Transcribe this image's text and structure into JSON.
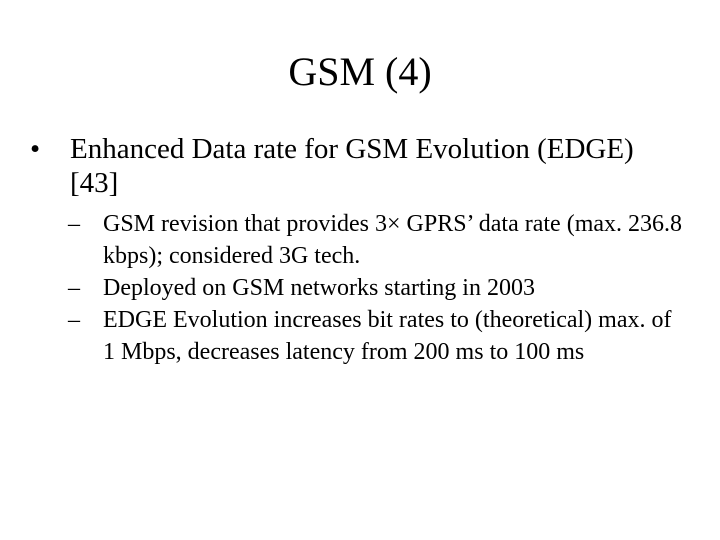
{
  "slide": {
    "title": "GSM (4)",
    "bullets": [
      {
        "text": "Enhanced Data rate for GSM Evolution (EDGE) [43]",
        "subitems": [
          "GSM revision that provides 3× GPRS’ data rate (max. 236.8 kbps); considered 3G tech.",
          "Deployed on GSM networks starting in 2003",
          "EDGE Evolution increases bit rates to (theoretical) max. of 1 Mbps, decreases latency from 200 ms to 100 ms"
        ]
      }
    ]
  }
}
